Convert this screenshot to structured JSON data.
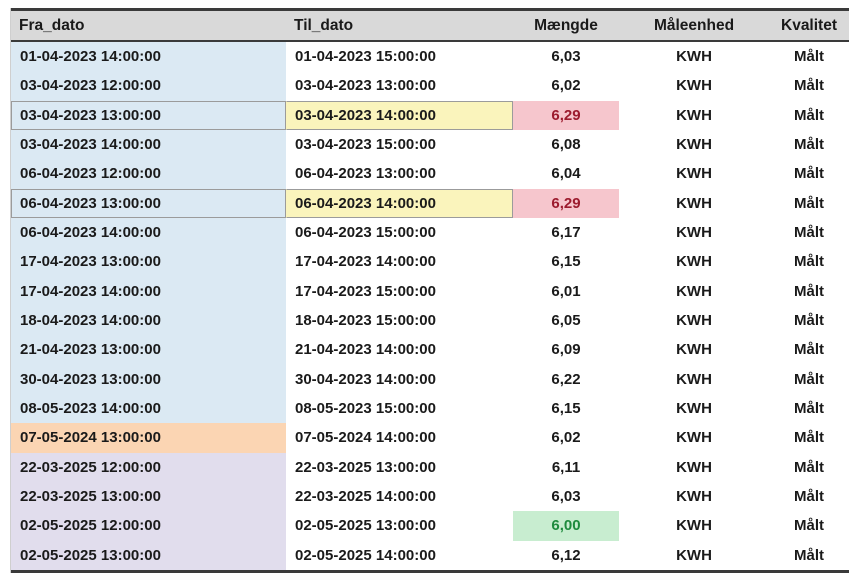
{
  "table": {
    "headers": [
      {
        "label": "Fra_dato",
        "name": "fra-dato"
      },
      {
        "label": "Til_dato",
        "name": "til-dato"
      },
      {
        "label": "Mængde",
        "name": "maengde"
      },
      {
        "label": "Måleenhed",
        "name": "maaleenhed"
      },
      {
        "label": "Kvalitet",
        "name": "kvalitet"
      }
    ],
    "rows": [
      {
        "fra": "01-04-2023 14:00:00",
        "til": "01-04-2023 15:00:00",
        "qty": "6,03",
        "unit": "KWH",
        "quality": "Målt",
        "fra_bg": "blue",
        "til_bg": "",
        "qty_bg": "",
        "outlined": false
      },
      {
        "fra": "03-04-2023 12:00:00",
        "til": "03-04-2023 13:00:00",
        "qty": "6,02",
        "unit": "KWH",
        "quality": "Målt",
        "fra_bg": "blue",
        "til_bg": "",
        "qty_bg": "",
        "outlined": false
      },
      {
        "fra": "03-04-2023 13:00:00",
        "til": "03-04-2023 14:00:00",
        "qty": "6,29",
        "unit": "KWH",
        "quality": "Målt",
        "fra_bg": "blue",
        "til_bg": "yellow",
        "qty_bg": "red",
        "outlined": true
      },
      {
        "fra": "03-04-2023 14:00:00",
        "til": "03-04-2023 15:00:00",
        "qty": "6,08",
        "unit": "KWH",
        "quality": "Målt",
        "fra_bg": "blue",
        "til_bg": "",
        "qty_bg": "",
        "outlined": false
      },
      {
        "fra": "06-04-2023 12:00:00",
        "til": "06-04-2023 13:00:00",
        "qty": "6,04",
        "unit": "KWH",
        "quality": "Målt",
        "fra_bg": "blue",
        "til_bg": "",
        "qty_bg": "",
        "outlined": false
      },
      {
        "fra": "06-04-2023 13:00:00",
        "til": "06-04-2023 14:00:00",
        "qty": "6,29",
        "unit": "KWH",
        "quality": "Målt",
        "fra_bg": "blue",
        "til_bg": "yellow",
        "qty_bg": "red",
        "outlined": true
      },
      {
        "fra": "06-04-2023 14:00:00",
        "til": "06-04-2023 15:00:00",
        "qty": "6,17",
        "unit": "KWH",
        "quality": "Målt",
        "fra_bg": "blue",
        "til_bg": "",
        "qty_bg": "",
        "outlined": false
      },
      {
        "fra": "17-04-2023 13:00:00",
        "til": "17-04-2023 14:00:00",
        "qty": "6,15",
        "unit": "KWH",
        "quality": "Målt",
        "fra_bg": "blue",
        "til_bg": "",
        "qty_bg": "",
        "outlined": false
      },
      {
        "fra": "17-04-2023 14:00:00",
        "til": "17-04-2023 15:00:00",
        "qty": "6,01",
        "unit": "KWH",
        "quality": "Målt",
        "fra_bg": "blue",
        "til_bg": "",
        "qty_bg": "",
        "outlined": false
      },
      {
        "fra": "18-04-2023 14:00:00",
        "til": "18-04-2023 15:00:00",
        "qty": "6,05",
        "unit": "KWH",
        "quality": "Målt",
        "fra_bg": "blue",
        "til_bg": "",
        "qty_bg": "",
        "outlined": false
      },
      {
        "fra": "21-04-2023 13:00:00",
        "til": "21-04-2023 14:00:00",
        "qty": "6,09",
        "unit": "KWH",
        "quality": "Målt",
        "fra_bg": "blue",
        "til_bg": "",
        "qty_bg": "",
        "outlined": false
      },
      {
        "fra": "30-04-2023 13:00:00",
        "til": "30-04-2023 14:00:00",
        "qty": "6,22",
        "unit": "KWH",
        "quality": "Målt",
        "fra_bg": "blue",
        "til_bg": "",
        "qty_bg": "",
        "outlined": false
      },
      {
        "fra": "08-05-2023 14:00:00",
        "til": "08-05-2023 15:00:00",
        "qty": "6,15",
        "unit": "KWH",
        "quality": "Målt",
        "fra_bg": "blue",
        "til_bg": "",
        "qty_bg": "",
        "outlined": false
      },
      {
        "fra": "07-05-2024 13:00:00",
        "til": "07-05-2024 14:00:00",
        "qty": "6,02",
        "unit": "KWH",
        "quality": "Målt",
        "fra_bg": "orange",
        "til_bg": "",
        "qty_bg": "",
        "outlined": false
      },
      {
        "fra": "22-03-2025 12:00:00",
        "til": "22-03-2025 13:00:00",
        "qty": "6,11",
        "unit": "KWH",
        "quality": "Målt",
        "fra_bg": "purple",
        "til_bg": "",
        "qty_bg": "",
        "outlined": false
      },
      {
        "fra": "22-03-2025 13:00:00",
        "til": "22-03-2025 14:00:00",
        "qty": "6,03",
        "unit": "KWH",
        "quality": "Målt",
        "fra_bg": "purple",
        "til_bg": "",
        "qty_bg": "",
        "outlined": false
      },
      {
        "fra": "02-05-2025 12:00:00",
        "til": "02-05-2025 13:00:00",
        "qty": "6,00",
        "unit": "KWH",
        "quality": "Målt",
        "fra_bg": "purple",
        "til_bg": "",
        "qty_bg": "green",
        "outlined": false
      },
      {
        "fra": "02-05-2025 13:00:00",
        "til": "02-05-2025 14:00:00",
        "qty": "6,12",
        "unit": "KWH",
        "quality": "Målt",
        "fra_bg": "purple",
        "til_bg": "",
        "qty_bg": "",
        "outlined": false
      }
    ]
  },
  "colors": {
    "header_bg": "#D9D9D9",
    "blue": "#DBE9F3",
    "orange": "#FBD5B3",
    "purple": "#E1DDED",
    "yellow": "#FAF4BC",
    "pink_bg": "#F6C6CD",
    "pink_text": "#9C1B2E",
    "green_bg": "#C8EDD0",
    "green_text": "#1F8B3E",
    "outline": "#9B9B9B",
    "thick_border": "#3A3A3A",
    "text": "#1A1A1A"
  }
}
